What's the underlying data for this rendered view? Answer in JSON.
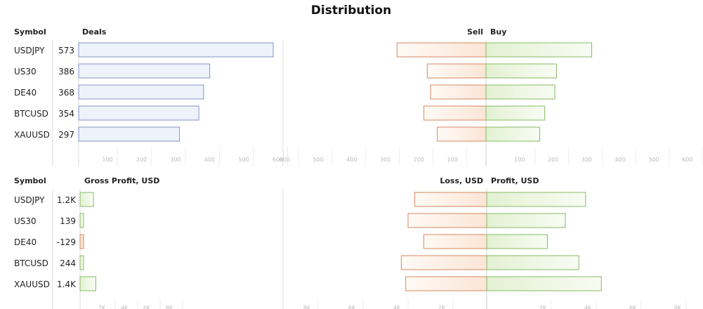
{
  "title": "Distribution",
  "colors": {
    "blue_fill": "#eef2fb",
    "blue_stroke": "#8394c9",
    "green_stroke": "#88b866",
    "green_light": "#f8fcf3",
    "green_dark": "#e2f1d2",
    "red_stroke": "#d58860",
    "red_light": "#fffaf5",
    "red_dark": "#fbe5d6",
    "axis": "#dddddd",
    "tick": "#bbbbbb",
    "text": "#222222"
  },
  "chart_data": [
    {
      "type": "bar",
      "name": "deals",
      "symbol_header": "Symbol",
      "value_header": "Deals",
      "categories": [
        "USDJPY",
        "US30",
        "DE40",
        "BTCUSD",
        "XAUUSD"
      ],
      "value_labels": [
        "573",
        "386",
        "368",
        "354",
        "297"
      ],
      "values": [
        573,
        386,
        368,
        354,
        297
      ],
      "xlim": [
        0,
        600
      ],
      "ticks": [
        "100",
        "200",
        "300",
        "400",
        "500",
        "600"
      ]
    },
    {
      "type": "bar",
      "name": "sell-buy",
      "left_header": "Sell",
      "right_header": "Buy",
      "categories": [
        "USDJPY",
        "US30",
        "DE40",
        "BTCUSD",
        "XAUUSD"
      ],
      "series": [
        {
          "name": "Sell",
          "values": [
            265,
            175,
            165,
            185,
            145
          ]
        },
        {
          "name": "Buy",
          "values": [
            315,
            210,
            205,
            175,
            160
          ]
        }
      ],
      "xlim": [
        0,
        600
      ],
      "left_ticks": [
        "600",
        "500",
        "400",
        "300",
        "200",
        "100"
      ],
      "right_ticks": [
        "100",
        "200",
        "300",
        "400",
        "500",
        "600"
      ]
    },
    {
      "type": "bar",
      "name": "gross-profit",
      "symbol_header": "Symbol",
      "value_header": "Gross Profit, USD",
      "categories": [
        "USDJPY",
        "US30",
        "DE40",
        "BTCUSD",
        "XAUUSD"
      ],
      "value_labels": [
        "1.2K",
        "139",
        "-129",
        "244",
        "1.4K"
      ],
      "values": [
        1200,
        139,
        -129,
        244,
        1400
      ],
      "xlim": [
        0,
        10000
      ],
      "ticks": [
        "2K",
        "4K",
        "6K",
        "8K"
      ]
    },
    {
      "type": "bar",
      "name": "loss-profit",
      "left_header": "Loss, USD",
      "right_header": "Profit, USD",
      "categories": [
        "USDJPY",
        "US30",
        "DE40",
        "BTCUSD",
        "XAUUSD"
      ],
      "series": [
        {
          "name": "Loss, USD",
          "values": [
            -3200,
            -3500,
            -2800,
            -3800,
            -3600
          ]
        },
        {
          "name": "Profit, USD",
          "values": [
            4400,
            3500,
            2700,
            4100,
            5100
          ]
        }
      ],
      "xlim": [
        -10000,
        10000
      ],
      "left_ticks": [
        "8K",
        "6K",
        "4K",
        "2K"
      ],
      "right_ticks": [
        "2K",
        "4K",
        "6K",
        "8K"
      ]
    }
  ]
}
